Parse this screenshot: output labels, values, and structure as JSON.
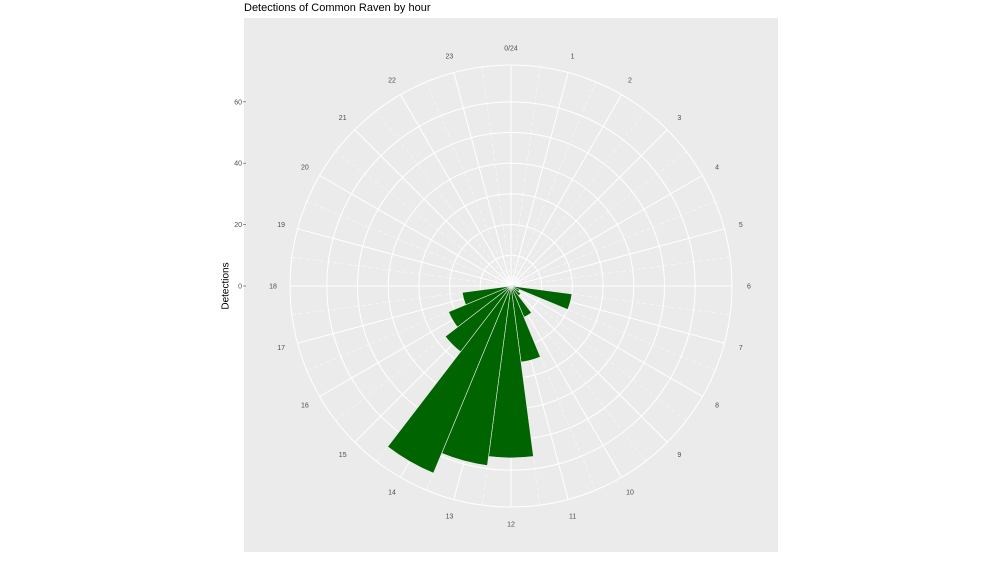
{
  "chart_data": {
    "type": "bar",
    "coord": "polar",
    "title": "Detections of Common Raven by hour",
    "xlabel": "",
    "ylabel": "Detections",
    "bar_color": "#006400",
    "panel_color": "#ebebeb",
    "grid": true,
    "ylim": [
      0,
      72
    ],
    "y_ticks": [
      0,
      20,
      40,
      60
    ],
    "x_tick_labels": [
      "0/24",
      "1",
      "2",
      "3",
      "4",
      "5",
      "6",
      "7",
      "8",
      "9",
      "10",
      "11",
      "12",
      "13",
      "14",
      "15",
      "16",
      "17",
      "18",
      "19",
      "20",
      "21",
      "22",
      "23"
    ],
    "categories": [
      0,
      1,
      2,
      3,
      4,
      5,
      6,
      7,
      8,
      9,
      10,
      11,
      12,
      13,
      14,
      15,
      16,
      17,
      18,
      19,
      20,
      21,
      22,
      23
    ],
    "values": [
      0,
      0,
      0,
      0,
      0,
      0,
      1,
      20,
      3,
      4,
      11,
      25,
      56,
      59,
      66,
      27,
      22,
      16,
      0,
      0,
      0,
      0,
      0,
      0
    ]
  }
}
